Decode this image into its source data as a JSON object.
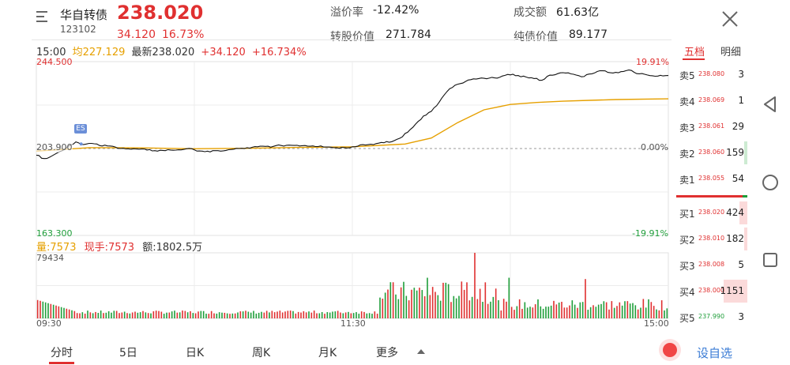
{
  "header": {
    "name": "华自转债",
    "code": "123102",
    "price": "238.020",
    "change": "34.120",
    "change_pct": "16.73%",
    "stats": [
      {
        "label": "溢价率",
        "value": "-12.42%"
      },
      {
        "label": "成交额",
        "value": "61.63亿"
      },
      {
        "label": "转股价值",
        "value": "271.784"
      },
      {
        "label": "纯债价值",
        "value": "89.177"
      }
    ]
  },
  "info_row": {
    "time": "15:00",
    "avg_label": "均227.129",
    "latest": "最新238.020",
    "change": "+34.120",
    "change_pct": "+16.734%"
  },
  "chart": {
    "y_top": "244.500",
    "y_mid": "203.900",
    "y_bot": "163.300",
    "pct_top": "19.91%",
    "pct_mid": "0.00%",
    "pct_bot": "-19.91%",
    "es_badge": "ES",
    "vol_label": "量:7573",
    "hand_label": "现手:7573",
    "amount_label": "额:1802.5万",
    "vol_max": "79434",
    "time_start": "09:30",
    "time_mid": "11:30",
    "time_end": "15:00"
  },
  "orderbook": {
    "tab_active": "五档",
    "tab_other": "明细",
    "sells": [
      {
        "label": "卖5",
        "price": "238.080",
        "vol": "3"
      },
      {
        "label": "卖4",
        "price": "238.069",
        "vol": "1"
      },
      {
        "label": "卖3",
        "price": "238.061",
        "vol": "29"
      },
      {
        "label": "卖2",
        "price": "238.060",
        "vol": "159"
      },
      {
        "label": "卖1",
        "price": "238.055",
        "vol": "54"
      }
    ],
    "buys": [
      {
        "label": "买1",
        "price": "238.020",
        "vol": "424"
      },
      {
        "label": "买2",
        "price": "238.010",
        "vol": "182"
      },
      {
        "label": "买3",
        "price": "238.008",
        "vol": "5"
      },
      {
        "label": "买4",
        "price": "238.000",
        "vol": "1151"
      },
      {
        "label": "买5",
        "price": "237.990",
        "vol": "3"
      }
    ]
  },
  "bottom_tabs": [
    "分时",
    "5日",
    "日K",
    "周K",
    "月K",
    "更多"
  ],
  "custom_select": "自选",
  "custom_select_prefix": "设",
  "chart_data": {
    "type": "line",
    "price_series": [
      [
        0,
        200.8
      ],
      [
        3,
        199.2
      ],
      [
        6,
        200.5
      ],
      [
        9,
        202.5
      ],
      [
        12,
        204.9
      ],
      [
        15,
        207.0
      ],
      [
        18,
        205.8
      ],
      [
        21,
        206.3
      ],
      [
        24,
        205.3
      ],
      [
        27,
        205.1
      ],
      [
        30,
        204.6
      ],
      [
        33,
        204.0
      ],
      [
        36,
        203.6
      ],
      [
        39,
        203.6
      ],
      [
        42,
        203.2
      ],
      [
        45,
        202.9
      ],
      [
        48,
        203.0
      ],
      [
        51,
        203.2
      ],
      [
        54,
        203.3
      ],
      [
        57,
        203.8
      ],
      [
        60,
        203.3
      ],
      [
        63,
        202.7
      ],
      [
        66,
        202.3
      ],
      [
        69,
        202.9
      ],
      [
        72,
        203.0
      ],
      [
        75,
        203.6
      ],
      [
        78,
        204.0
      ],
      [
        81,
        204.1
      ],
      [
        84,
        204.7
      ],
      [
        87,
        204.9
      ],
      [
        90,
        204.9
      ],
      [
        93,
        205.3
      ],
      [
        96,
        205.5
      ],
      [
        99,
        205.4
      ],
      [
        102,
        205.3
      ],
      [
        105,
        205.1
      ],
      [
        108,
        205.1
      ],
      [
        111,
        204.6
      ],
      [
        114,
        204.3
      ],
      [
        117,
        204.3
      ],
      [
        120,
        204.7
      ],
      [
        123,
        205.6
      ],
      [
        126,
        205.7
      ],
      [
        129,
        206.2
      ],
      [
        132,
        206.6
      ],
      [
        135,
        207.1
      ],
      [
        138,
        208.7
      ],
      [
        141,
        211.5
      ],
      [
        144,
        215.3
      ],
      [
        147,
        219.1
      ],
      [
        150,
        221.3
      ],
      [
        153,
        225.6
      ],
      [
        156,
        230.6
      ],
      [
        159,
        233.5
      ],
      [
        162,
        234.5
      ],
      [
        165,
        236.1
      ],
      [
        168,
        236.6
      ],
      [
        171,
        236.5
      ],
      [
        174,
        236.9
      ],
      [
        177,
        237.8
      ],
      [
        180,
        238.3
      ],
      [
        183,
        238.0
      ],
      [
        186,
        237.3
      ],
      [
        189,
        236.6
      ],
      [
        192,
        235.8
      ],
      [
        195,
        238.2
      ],
      [
        198,
        238.9
      ],
      [
        201,
        239.2
      ],
      [
        204,
        238.6
      ],
      [
        207,
        237.4
      ],
      [
        210,
        238.7
      ],
      [
        213,
        239.9
      ],
      [
        216,
        240.2
      ],
      [
        219,
        239.2
      ],
      [
        222,
        239.8
      ],
      [
        225,
        240.6
      ],
      [
        228,
        238.9
      ],
      [
        231,
        238.6
      ],
      [
        234,
        237.9
      ],
      [
        237,
        238.1
      ],
      [
        240,
        238.0
      ]
    ],
    "avg_series": [
      [
        0,
        202.7
      ],
      [
        20,
        204.3
      ],
      [
        40,
        204.2
      ],
      [
        60,
        203.8
      ],
      [
        80,
        204.0
      ],
      [
        100,
        204.4
      ],
      [
        120,
        204.7
      ],
      [
        140,
        206.0
      ],
      [
        150,
        208.8
      ],
      [
        160,
        216.0
      ],
      [
        170,
        222.0
      ],
      [
        180,
        224.5
      ],
      [
        190,
        225.4
      ],
      [
        200,
        226.0
      ],
      [
        210,
        226.4
      ],
      [
        220,
        226.8
      ],
      [
        240,
        227.1
      ]
    ],
    "volume_peak": 79434,
    "ylim": [
      163.3,
      244.5
    ],
    "x_ticks": [
      "09:30",
      "11:30",
      "15:00"
    ]
  },
  "colors": {
    "up": "#e03030",
    "down": "#1f9e3a",
    "avg": "#e6a000",
    "link": "#3a7bd5"
  }
}
